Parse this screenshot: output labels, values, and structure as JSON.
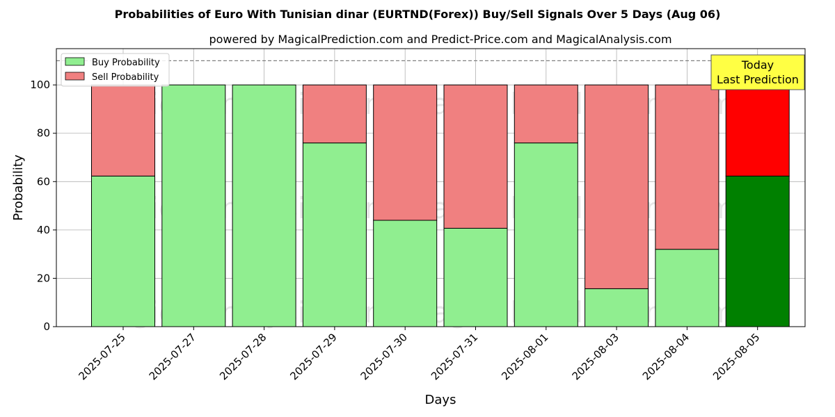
{
  "chart_data": {
    "type": "bar",
    "stacked": true,
    "title": "Probabilities of Euro With Tunisian dinar (EURTND(Forex)) Buy/Sell Signals Over 5 Days (Aug 06)",
    "subtitle": "powered by MagicalPrediction.com and Predict-Price.com and MagicalAnalysis.com",
    "xlabel": "Days",
    "ylabel": "Probability",
    "ylim": [
      0,
      115
    ],
    "yticks": [
      0,
      20,
      40,
      60,
      80,
      100
    ],
    "reference_line": 110,
    "grid": true,
    "legend_position": "top-left",
    "categories": [
      "2025-07-25",
      "2025-07-27",
      "2025-07-28",
      "2025-07-29",
      "2025-07-30",
      "2025-07-31",
      "2025-08-01",
      "2025-08-03",
      "2025-08-04",
      "2025-08-05"
    ],
    "series": [
      {
        "name": "Buy Probability",
        "color": "#90ee90",
        "highlight_color": "#008000",
        "values": [
          62.3,
          100,
          100,
          76,
          44,
          40.7,
          76,
          15.7,
          32,
          62.3
        ]
      },
      {
        "name": "Sell Probability",
        "color": "#f08080",
        "highlight_color": "#ff0000",
        "values": [
          37.7,
          0,
          0,
          24,
          56,
          59.3,
          24,
          84.3,
          68,
          37.7
        ]
      }
    ],
    "highlight_index": 9,
    "annotation": {
      "line1": "Today",
      "line2": "Last Prediction",
      "color": "#ffff44"
    },
    "watermarks": [
      "MagicalAnalysis.com",
      "MagicalPrediction.com",
      "MagicalAnalysis.com",
      "MagicalPrediction.com",
      "MagicalAnalysis.com",
      "MagicalPrediction.com"
    ]
  }
}
